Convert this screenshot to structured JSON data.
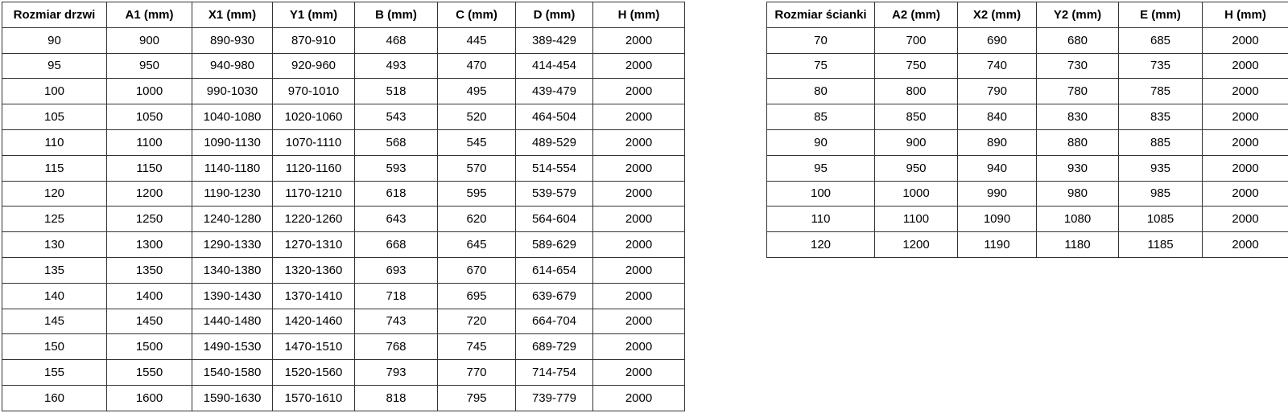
{
  "colors": {
    "background": "#ffffff",
    "border": "#333333",
    "text": "#000000"
  },
  "tables": [
    {
      "name": "door-sizes",
      "headers": [
        "Rozmiar drzwi",
        "A1 (mm)",
        "X1 (mm)",
        "Y1 (mm)",
        "B (mm)",
        "C (mm)",
        "D (mm)",
        "H (mm)"
      ],
      "rows": [
        [
          "90",
          "900",
          "890-930",
          "870-910",
          "468",
          "445",
          "389-429",
          "2000"
        ],
        [
          "95",
          "950",
          "940-980",
          "920-960",
          "493",
          "470",
          "414-454",
          "2000"
        ],
        [
          "100",
          "1000",
          "990-1030",
          "970-1010",
          "518",
          "495",
          "439-479",
          "2000"
        ],
        [
          "105",
          "1050",
          "1040-1080",
          "1020-1060",
          "543",
          "520",
          "464-504",
          "2000"
        ],
        [
          "110",
          "1100",
          "1090-1130",
          "1070-1110",
          "568",
          "545",
          "489-529",
          "2000"
        ],
        [
          "115",
          "1150",
          "1140-1180",
          "1120-1160",
          "593",
          "570",
          "514-554",
          "2000"
        ],
        [
          "120",
          "1200",
          "1190-1230",
          "1170-1210",
          "618",
          "595",
          "539-579",
          "2000"
        ],
        [
          "125",
          "1250",
          "1240-1280",
          "1220-1260",
          "643",
          "620",
          "564-604",
          "2000"
        ],
        [
          "130",
          "1300",
          "1290-1330",
          "1270-1310",
          "668",
          "645",
          "589-629",
          "2000"
        ],
        [
          "135",
          "1350",
          "1340-1380",
          "1320-1360",
          "693",
          "670",
          "614-654",
          "2000"
        ],
        [
          "140",
          "1400",
          "1390-1430",
          "1370-1410",
          "718",
          "695",
          "639-679",
          "2000"
        ],
        [
          "145",
          "1450",
          "1440-1480",
          "1420-1460",
          "743",
          "720",
          "664-704",
          "2000"
        ],
        [
          "150",
          "1500",
          "1490-1530",
          "1470-1510",
          "768",
          "745",
          "689-729",
          "2000"
        ],
        [
          "155",
          "1550",
          "1540-1580",
          "1520-1560",
          "793",
          "770",
          "714-754",
          "2000"
        ],
        [
          "160",
          "1600",
          "1590-1630",
          "1570-1610",
          "818",
          "795",
          "739-779",
          "2000"
        ]
      ]
    },
    {
      "name": "wall-sizes",
      "headers": [
        "Rozmiar ścianki",
        "A2 (mm)",
        "X2 (mm)",
        "Y2 (mm)",
        "E (mm)",
        "H (mm)"
      ],
      "rows": [
        [
          "70",
          "700",
          "690",
          "680",
          "685",
          "2000"
        ],
        [
          "75",
          "750",
          "740",
          "730",
          "735",
          "2000"
        ],
        [
          "80",
          "800",
          "790",
          "780",
          "785",
          "2000"
        ],
        [
          "85",
          "850",
          "840",
          "830",
          "835",
          "2000"
        ],
        [
          "90",
          "900",
          "890",
          "880",
          "885",
          "2000"
        ],
        [
          "95",
          "950",
          "940",
          "930",
          "935",
          "2000"
        ],
        [
          "100",
          "1000",
          "990",
          "980",
          "985",
          "2000"
        ],
        [
          "110",
          "1100",
          "1090",
          "1080",
          "1085",
          "2000"
        ],
        [
          "120",
          "1200",
          "1190",
          "1180",
          "1185",
          "2000"
        ]
      ]
    }
  ]
}
